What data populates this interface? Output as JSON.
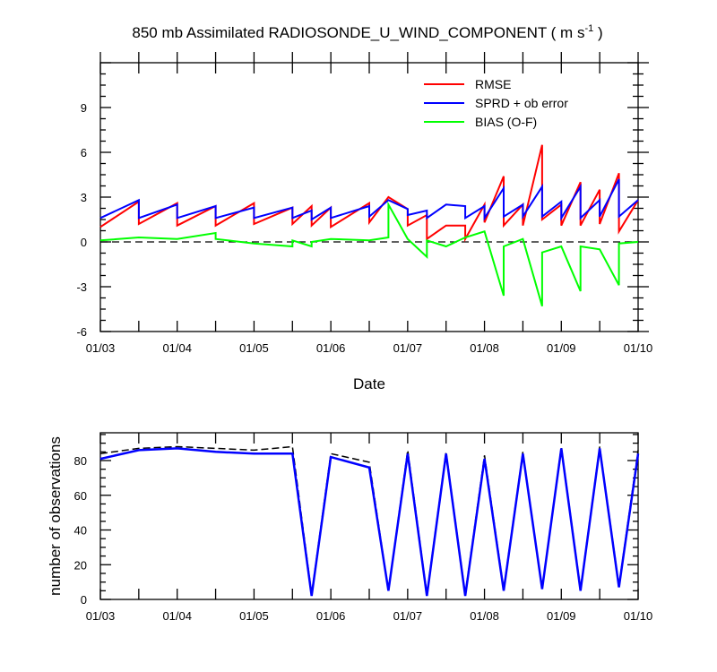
{
  "chart_data": [
    {
      "type": "line",
      "title": {
        "main": "850 mb Assimilated RADIOSONDE_U_WIND_COMPONENT ( m s",
        "superscript": "-1",
        "end": " )"
      },
      "xlabel": "Date",
      "ylabel": "",
      "x_range": [
        0,
        7
      ],
      "x_ticks": [
        0,
        1,
        2,
        3,
        4,
        5,
        6,
        7
      ],
      "x_tick_labels": [
        "01/03",
        "01/04",
        "01/05",
        "01/06",
        "01/07",
        "01/08",
        "01/09",
        "01/10"
      ],
      "ylim": [
        -6,
        12
      ],
      "y_ticks": [
        -6,
        -3,
        0,
        3,
        6,
        9
      ],
      "y_tick_labels": [
        "-6",
        "-3",
        "0",
        "3",
        "6",
        "9"
      ],
      "zero_line": {
        "value": 0,
        "style": "dashed"
      },
      "legend": {
        "position": "top-right"
      },
      "series": [
        {
          "name": "RMSE",
          "color": "#ff0000",
          "x": [
            0,
            0.5,
            0.5,
            1,
            1,
            1.5,
            1.5,
            2,
            2,
            2.5,
            2.5,
            2.75,
            2.75,
            3,
            3,
            3.5,
            3.5,
            3.75,
            4,
            4,
            4.25,
            4.25,
            4.5,
            4.75,
            4.75,
            5,
            5,
            5.25,
            5.25,
            5.5,
            5.5,
            5.75,
            5.75,
            6,
            6,
            6.25,
            6.25,
            6.5,
            6.5,
            6.75,
            6.75,
            7
          ],
          "y": [
            1.0,
            2.7,
            1.2,
            2.6,
            1.1,
            2.4,
            1.1,
            2.6,
            1.2,
            2.3,
            1.2,
            2.4,
            1.1,
            2.3,
            1.0,
            2.6,
            1.3,
            3.0,
            2.2,
            1.1,
            1.8,
            0.2,
            1.1,
            1.1,
            0.2,
            2.5,
            1.3,
            4.4,
            1.1,
            2.5,
            1.1,
            6.5,
            1.5,
            2.5,
            1.1,
            4.0,
            1.1,
            3.5,
            1.2,
            4.6,
            0.7,
            2.8
          ]
        },
        {
          "name": "SPRD + ob error",
          "color": "#0000ff",
          "x": [
            0,
            0.5,
            0.5,
            1,
            1,
            1.5,
            1.5,
            2,
            2,
            2.5,
            2.5,
            2.75,
            2.75,
            3,
            3,
            3.5,
            3.5,
            3.75,
            4,
            4,
            4.25,
            4.25,
            4.5,
            4.75,
            4.75,
            5,
            5,
            5.25,
            5.25,
            5.5,
            5.5,
            5.75,
            5.75,
            6,
            6,
            6.25,
            6.25,
            6.5,
            6.5,
            6.75,
            6.75,
            7
          ],
          "y": [
            1.6,
            2.8,
            1.6,
            2.5,
            1.6,
            2.4,
            1.6,
            2.3,
            1.6,
            2.3,
            1.6,
            2.1,
            1.5,
            2.3,
            1.6,
            2.4,
            1.7,
            2.8,
            2.2,
            1.8,
            2.1,
            1.6,
            2.5,
            2.4,
            1.6,
            2.4,
            1.6,
            3.6,
            1.7,
            2.5,
            1.7,
            3.7,
            1.7,
            2.7,
            1.6,
            3.7,
            1.6,
            2.8,
            1.7,
            4.2,
            1.7,
            2.8
          ]
        },
        {
          "name": "BIAS (O-F)",
          "color": "#00ff00",
          "x": [
            0,
            0.5,
            1,
            1.5,
            1.5,
            2,
            2.5,
            2.5,
            2.75,
            2.75,
            3,
            3.5,
            3.75,
            3.75,
            4,
            4.25,
            4.25,
            4.5,
            4.75,
            5,
            5.25,
            5.25,
            5.5,
            5.75,
            5.75,
            6,
            6.25,
            6.25,
            6.5,
            6.75,
            6.75,
            7
          ],
          "y": [
            0.1,
            0.3,
            0.2,
            0.6,
            0.2,
            -0.1,
            -0.3,
            0.1,
            -0.3,
            0.0,
            0.2,
            0.1,
            0.3,
            2.5,
            0.2,
            -1.0,
            0.1,
            -0.3,
            0.3,
            0.7,
            -3.6,
            -0.3,
            0.2,
            -4.3,
            -0.7,
            -0.3,
            -3.3,
            -0.3,
            -0.5,
            -2.9,
            -0.1,
            0.0
          ]
        }
      ]
    },
    {
      "type": "line",
      "title": "",
      "xlabel": "",
      "ylabel": "number of observations",
      "x_range": [
        0,
        7
      ],
      "x_ticks": [
        0,
        1,
        2,
        3,
        4,
        5,
        6,
        7
      ],
      "x_tick_labels": [
        "01/03",
        "01/04",
        "01/05",
        "01/06",
        "01/07",
        "01/08",
        "01/09",
        "01/10"
      ],
      "ylim": [
        0,
        96
      ],
      "y_ticks": [
        0,
        20,
        40,
        60,
        80
      ],
      "y_tick_labels": [
        "0",
        "20",
        "40",
        "60",
        "80"
      ],
      "series": [
        {
          "style": "dashed",
          "color": "#000000",
          "x": [
            0,
            0.5,
            1,
            1.5,
            2,
            2.5,
            2.75,
            3,
            3.5,
            3.75,
            4,
            4.25,
            4.5,
            4.75,
            5,
            5.25,
            5.5,
            5.75,
            6,
            6.25,
            6.5,
            6.75,
            7
          ],
          "y": [
            84,
            87,
            88,
            87,
            86,
            88,
            3,
            84,
            79,
            5,
            86,
            3,
            85,
            3,
            83,
            6,
            85,
            6,
            88,
            6,
            88,
            8,
            86
          ]
        },
        {
          "style": "solid",
          "color": "#0000ff",
          "x": [
            0,
            0.5,
            1,
            1.5,
            2,
            2.5,
            2.75,
            3,
            3.5,
            3.75,
            4,
            4.25,
            4.5,
            4.75,
            5,
            5.25,
            5.5,
            5.75,
            6,
            6.25,
            6.5,
            6.75,
            7
          ],
          "y": [
            81,
            86,
            87,
            85,
            84,
            84,
            2,
            82,
            76,
            5,
            84,
            2,
            84,
            2,
            81,
            5,
            84,
            6,
            87,
            5,
            87,
            7,
            84
          ]
        }
      ]
    }
  ]
}
